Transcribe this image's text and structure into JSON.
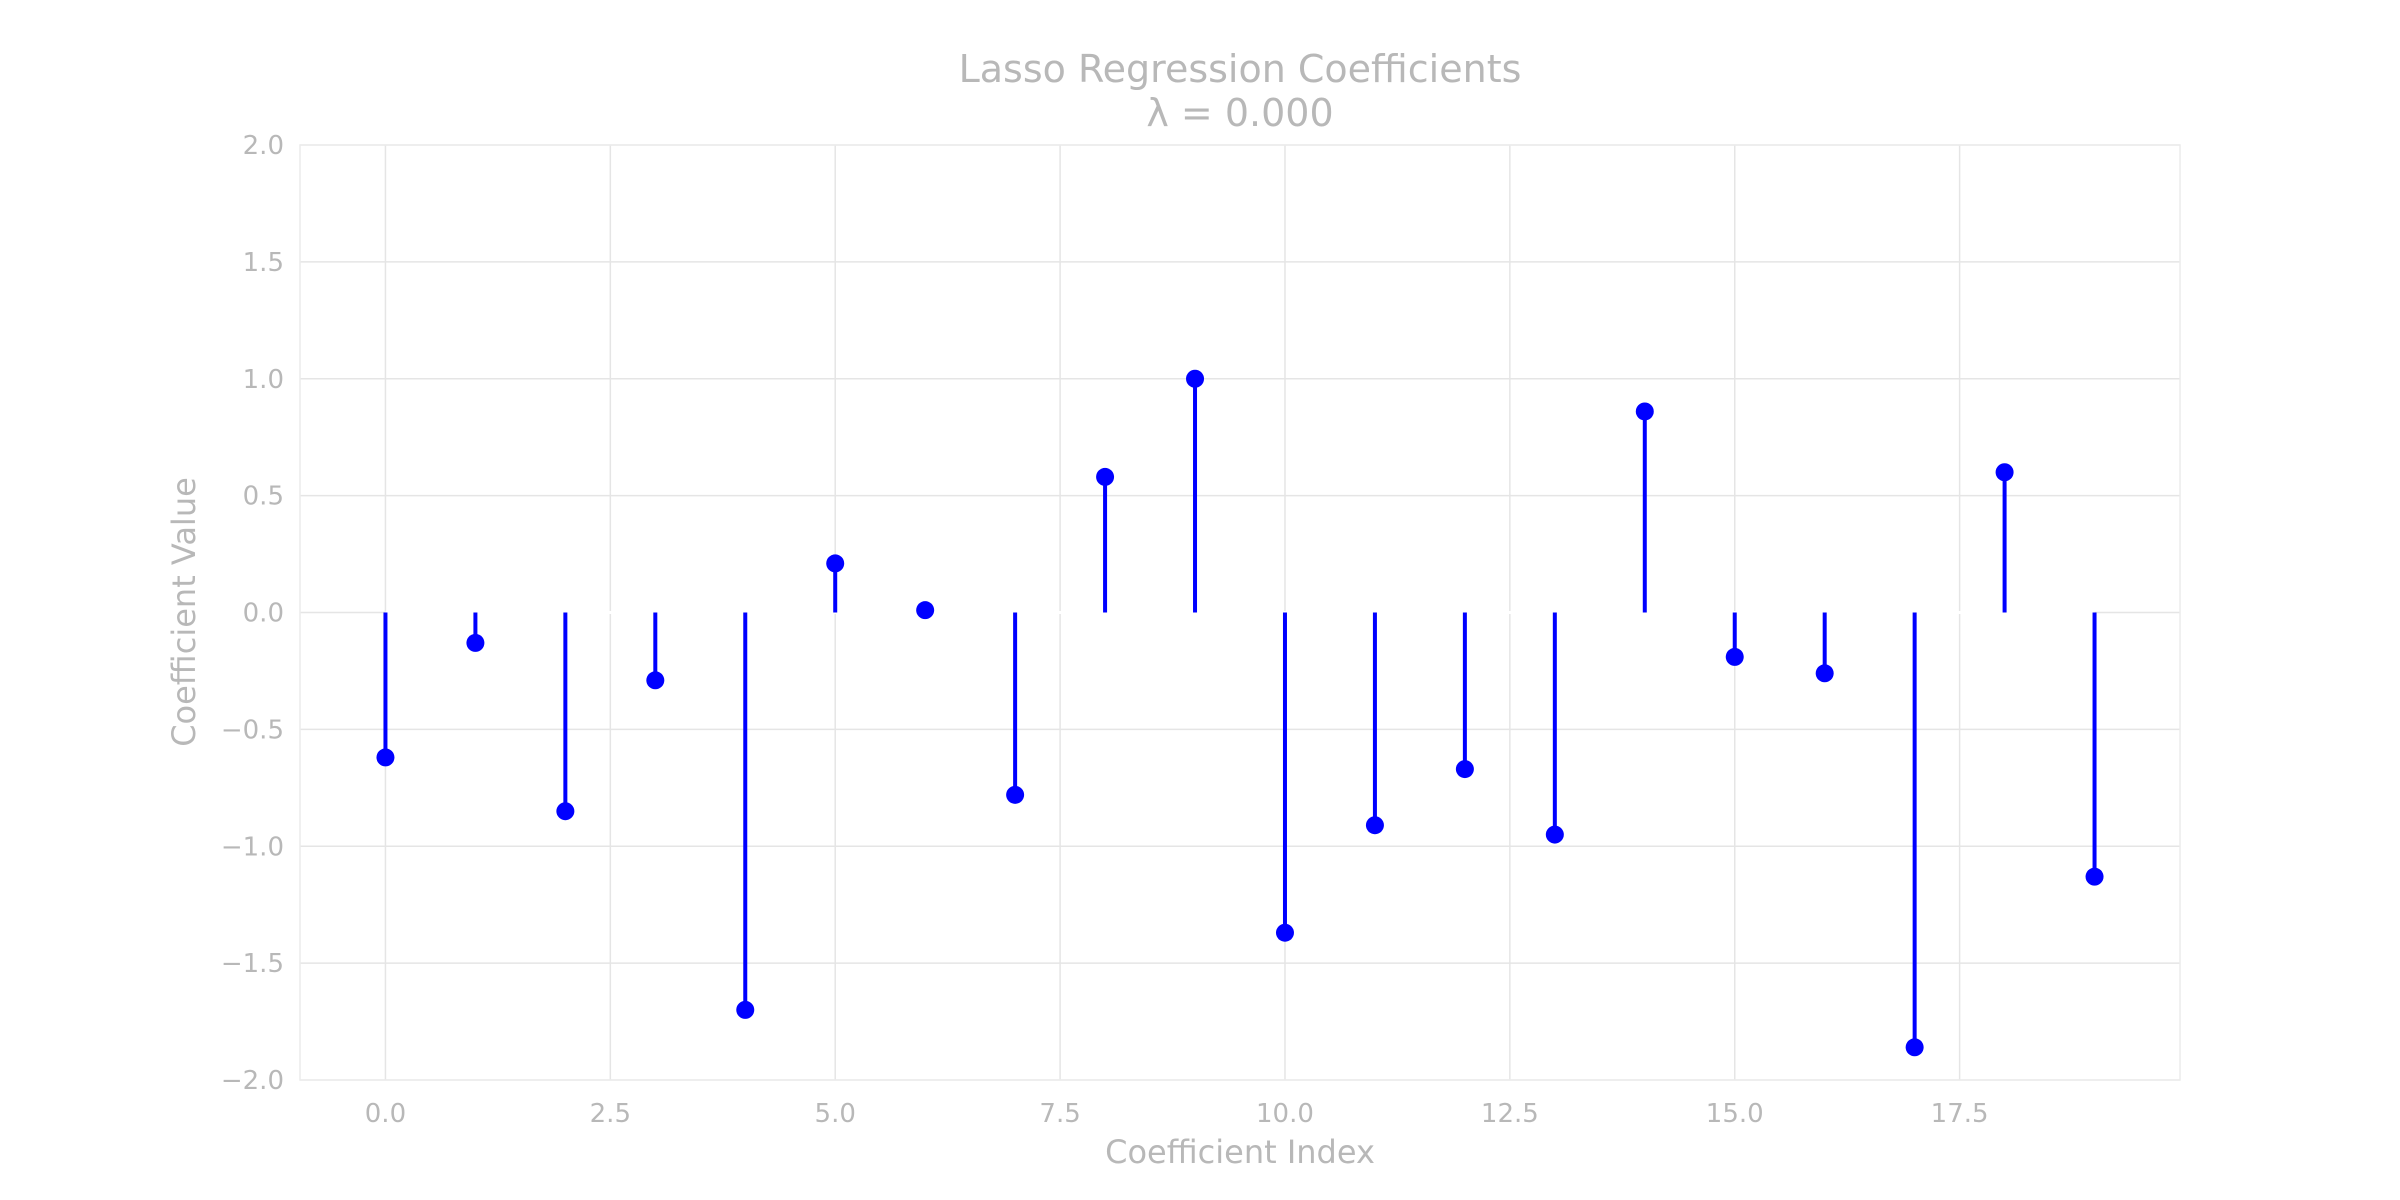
{
  "chart_data": {
    "type": "stem",
    "title": "Lasso Regression Coefficients",
    "subtitle": "λ = 0.000",
    "xlabel": "Coefficient Index",
    "ylabel": "Coefficient Value",
    "xlim": [
      -0.95,
      19.95
    ],
    "ylim": [
      -2.0,
      2.0
    ],
    "xticks": [
      0.0,
      2.5,
      5.0,
      7.5,
      10.0,
      12.5,
      15.0,
      17.5
    ],
    "xtick_labels": [
      "0.0",
      "2.5",
      "5.0",
      "7.5",
      "10.0",
      "12.5",
      "15.0",
      "17.5"
    ],
    "yticks": [
      2.0,
      1.5,
      1.0,
      0.5,
      0.0,
      -0.5,
      -1.0,
      -1.5,
      -2.0
    ],
    "ytick_labels": [
      "2.0",
      "1.5",
      "1.0",
      "0.5",
      "0.0",
      "−0.5",
      "−1.0",
      "−1.5",
      "−2.0"
    ],
    "grid": true,
    "x": [
      0,
      1,
      2,
      3,
      4,
      5,
      6,
      7,
      8,
      9,
      10,
      11,
      12,
      13,
      14,
      15,
      16,
      17,
      18,
      19
    ],
    "values": [
      -0.62,
      -0.13,
      -0.85,
      -0.29,
      -1.7,
      0.21,
      0.01,
      -0.78,
      0.58,
      1.0,
      -1.37,
      -0.91,
      -0.67,
      -0.95,
      0.86,
      -0.19,
      -0.26,
      -1.86,
      0.6,
      -1.13
    ],
    "color": "#0000ff"
  }
}
